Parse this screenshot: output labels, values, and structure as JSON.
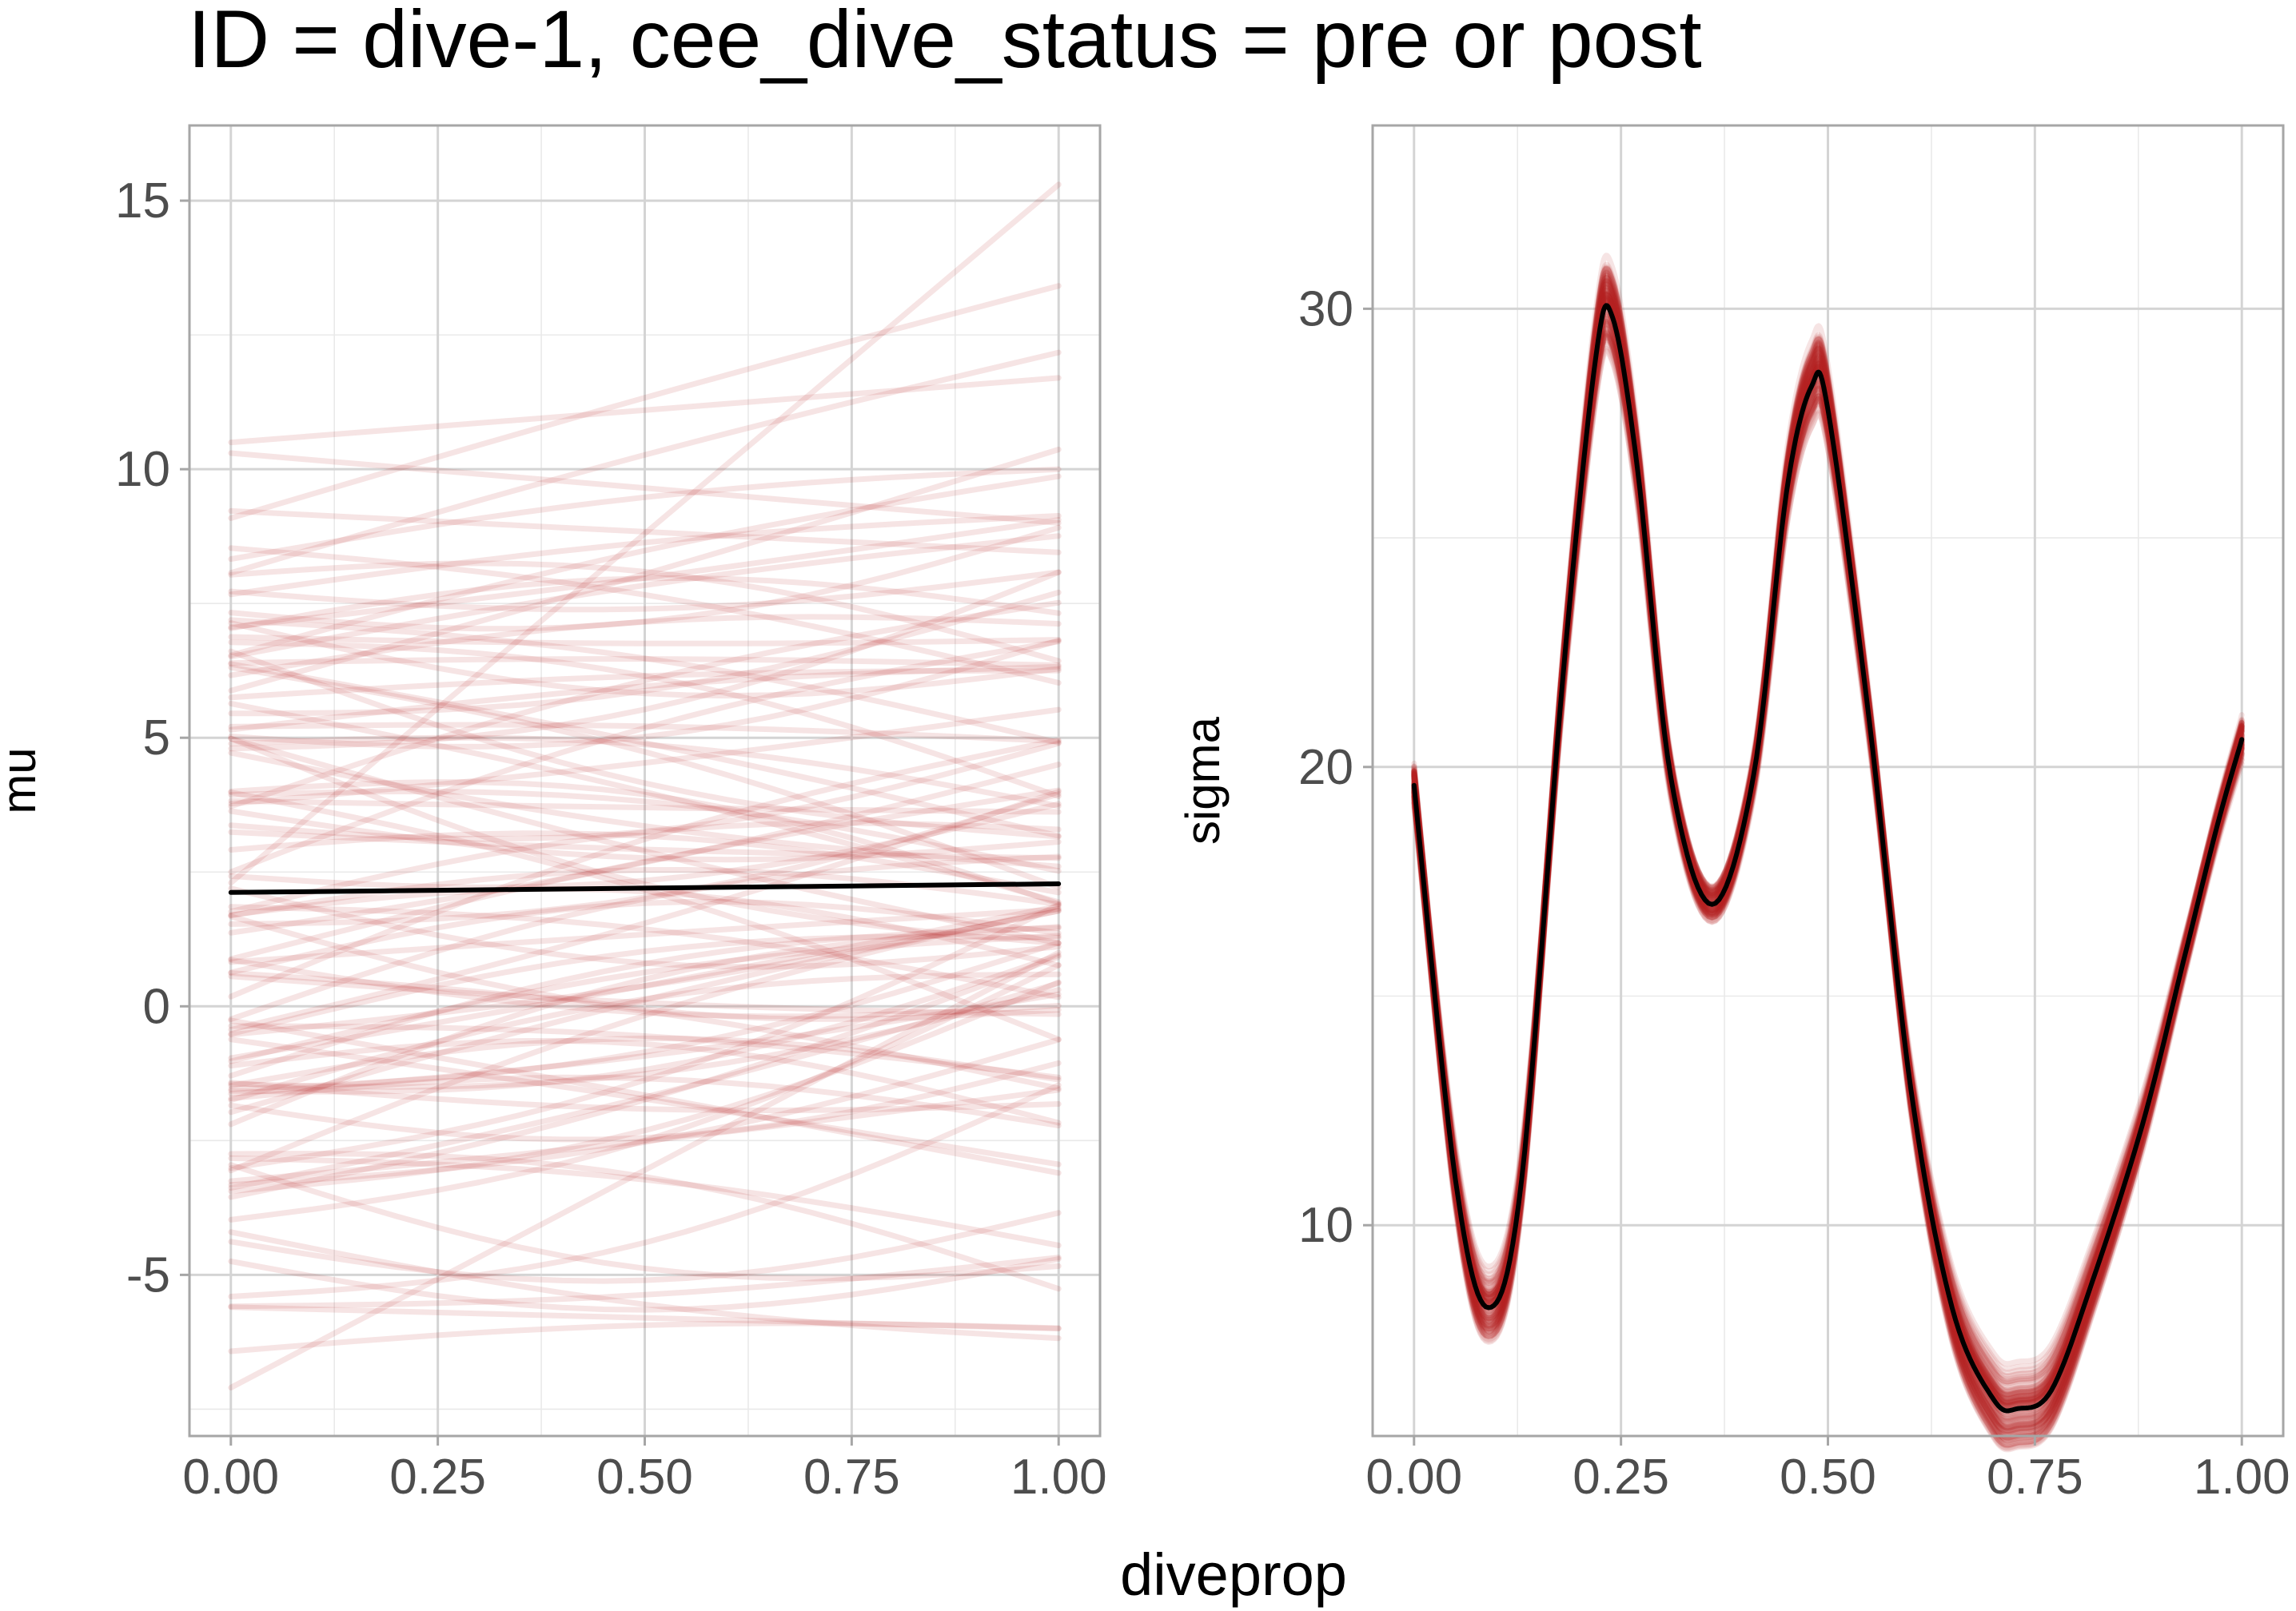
{
  "figure": {
    "title": "ID = dive-1, cee_dive_status = pre or post",
    "xlabel": "diveprop"
  },
  "chart_data": [
    {
      "type": "line",
      "panel": "mu",
      "xlabel": "diveprop",
      "ylabel": "mu",
      "xlim": [
        -0.05,
        1.05
      ],
      "ylim": [
        -8.0,
        16.4
      ],
      "xticks": [
        0,
        0.25,
        0.5,
        0.75,
        1
      ],
      "xtick_labels": [
        "0.00",
        "0.25",
        "0.50",
        "0.75",
        "1.00"
      ],
      "yticks": [
        -5,
        0,
        5,
        10,
        15
      ],
      "ytick_labels": [
        "-5",
        "0",
        "5",
        "10",
        "15"
      ],
      "grid": true,
      "draw_color": "#b22222",
      "draw_opacity": 0.12,
      "draw_count": 100,
      "draw_range": {
        "x0_min": -7.1,
        "x0_max": 10.5,
        "x1_min": -6.9,
        "x1_max": 15.3
      },
      "series": [
        {
          "role": "posterior-mean",
          "color": "#000000",
          "x": [
            0,
            0.25,
            0.5,
            0.75,
            1
          ],
          "y": [
            2.12,
            2.16,
            2.2,
            2.24,
            2.28
          ]
        }
      ]
    },
    {
      "type": "line",
      "panel": "sigma",
      "xlabel": "diveprop",
      "ylabel": "sigma",
      "xlim": [
        -0.05,
        1.05
      ],
      "ylim": [
        5.4,
        34.0
      ],
      "xticks": [
        0,
        0.25,
        0.5,
        0.75,
        1
      ],
      "xtick_labels": [
        "0.00",
        "0.25",
        "0.50",
        "0.75",
        "1.00"
      ],
      "yticks": [
        10,
        20,
        30
      ],
      "ytick_labels": [
        "10",
        "20",
        "30"
      ],
      "grid": true,
      "draw_color": "#b22222",
      "draw_opacity": 0.12,
      "draw_count": 100,
      "draw_spread": 0.06,
      "series": [
        {
          "role": "posterior-mean",
          "color": "#000000",
          "x": [
            0.0,
            0.05,
            0.09,
            0.13,
            0.18,
            0.22,
            0.24,
            0.27,
            0.31,
            0.36,
            0.41,
            0.45,
            0.48,
            0.5,
            0.55,
            0.6,
            0.65,
            0.7,
            0.73,
            0.77,
            0.82,
            0.88,
            0.93,
            0.97,
            1.0
          ],
          "y": [
            19.6,
            11.0,
            8.2,
            11.0,
            22.0,
            29.0,
            29.8,
            26.5,
            19.8,
            17.0,
            19.8,
            26.0,
            28.3,
            27.8,
            21.0,
            13.0,
            8.2,
            6.2,
            6.0,
            6.4,
            8.8,
            12.2,
            15.8,
            18.7,
            20.6
          ]
        }
      ]
    }
  ]
}
